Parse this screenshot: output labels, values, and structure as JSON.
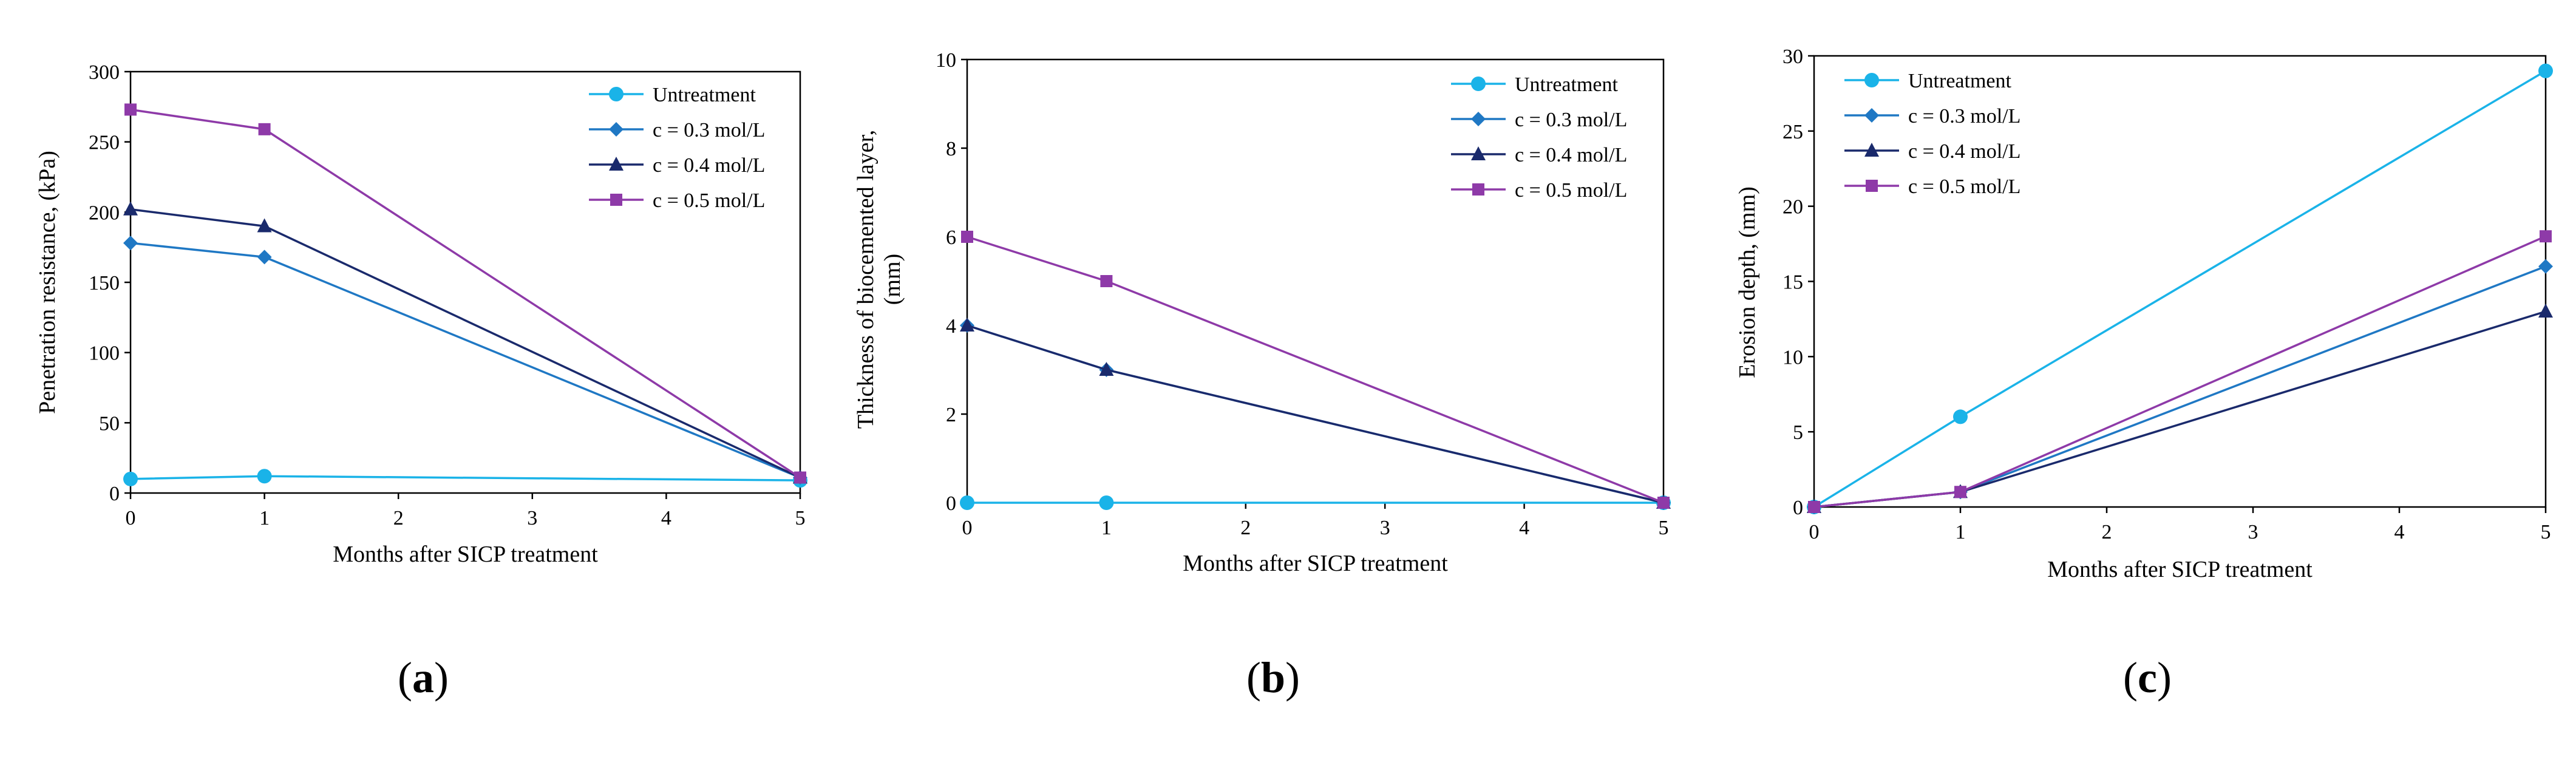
{
  "chart_data": [
    {
      "type": "line",
      "panel_label": "a",
      "xlabel": "Months after SICP treatment",
      "ylabel": "Penetration resistance, (kPa)",
      "ylabel_lines": [
        "Penetration resistance, (kPa)"
      ],
      "x": [
        0,
        1,
        5
      ],
      "xlim": [
        0,
        5
      ],
      "ylim": [
        0,
        300
      ],
      "xticks": [
        0,
        1,
        2,
        3,
        4,
        5
      ],
      "yticks": [
        0,
        50,
        100,
        150,
        200,
        250,
        300
      ],
      "legend_position": "top-right",
      "series": [
        {
          "name": "Untreatment",
          "values": [
            10,
            12,
            9
          ],
          "color": "#1ab3e8",
          "marker": "circle"
        },
        {
          "name": "c = 0.3 mol/L",
          "values": [
            178,
            168,
            11
          ],
          "color": "#1f78c4",
          "marker": "diamond"
        },
        {
          "name": "c = 0.4 mol/L",
          "values": [
            202,
            190,
            11
          ],
          "color": "#1a2a6c",
          "marker": "triangle"
        },
        {
          "name": "c = 0.5 mol/L",
          "values": [
            273,
            259,
            11
          ],
          "color": "#8e3aa8",
          "marker": "square"
        }
      ]
    },
    {
      "type": "line",
      "panel_label": "b",
      "xlabel": "Months after SICP treatment",
      "ylabel": "Thickness of biocemented layer, (mm)",
      "ylabel_lines": [
        "Thickness of biocemented layer,",
        "(mm)"
      ],
      "x": [
        0,
        1,
        5
      ],
      "xlim": [
        0,
        5
      ],
      "ylim": [
        0,
        10
      ],
      "xticks": [
        0,
        1,
        2,
        3,
        4,
        5
      ],
      "yticks": [
        0,
        2,
        4,
        6,
        8,
        10
      ],
      "legend_position": "top-right",
      "series": [
        {
          "name": "Untreatment",
          "values": [
            0,
            0,
            0
          ],
          "color": "#1ab3e8",
          "marker": "circle"
        },
        {
          "name": "c = 0.3 mol/L",
          "values": [
            4,
            3,
            0
          ],
          "color": "#1f78c4",
          "marker": "diamond"
        },
        {
          "name": "c = 0.4 mol/L",
          "values": [
            4,
            3,
            0
          ],
          "color": "#1a2a6c",
          "marker": "triangle"
        },
        {
          "name": "c = 0.5 mol/L",
          "values": [
            6,
            5,
            0
          ],
          "color": "#8e3aa8",
          "marker": "square"
        }
      ]
    },
    {
      "type": "line",
      "panel_label": "c",
      "xlabel": "Months after SICP treatment",
      "ylabel": "Erosion depth, (mm)",
      "ylabel_lines": [
        "Erosion depth, (mm)"
      ],
      "x": [
        0,
        1,
        5
      ],
      "xlim": [
        0,
        5
      ],
      "ylim": [
        0,
        30
      ],
      "xticks": [
        0,
        1,
        2,
        3,
        4,
        5
      ],
      "yticks": [
        0,
        5,
        10,
        15,
        20,
        25,
        30
      ],
      "legend_position": "top-left",
      "series": [
        {
          "name": "Untreatment",
          "values": [
            0,
            6,
            29
          ],
          "color": "#1ab3e8",
          "marker": "circle"
        },
        {
          "name": "c = 0.3 mol/L",
          "values": [
            0,
            1,
            16
          ],
          "color": "#1f78c4",
          "marker": "diamond"
        },
        {
          "name": "c = 0.4 mol/L",
          "values": [
            0,
            1,
            13
          ],
          "color": "#1a2a6c",
          "marker": "triangle"
        },
        {
          "name": "c = 0.5 mol/L",
          "values": [
            0,
            1,
            18
          ],
          "color": "#8e3aa8",
          "marker": "square"
        }
      ]
    }
  ]
}
